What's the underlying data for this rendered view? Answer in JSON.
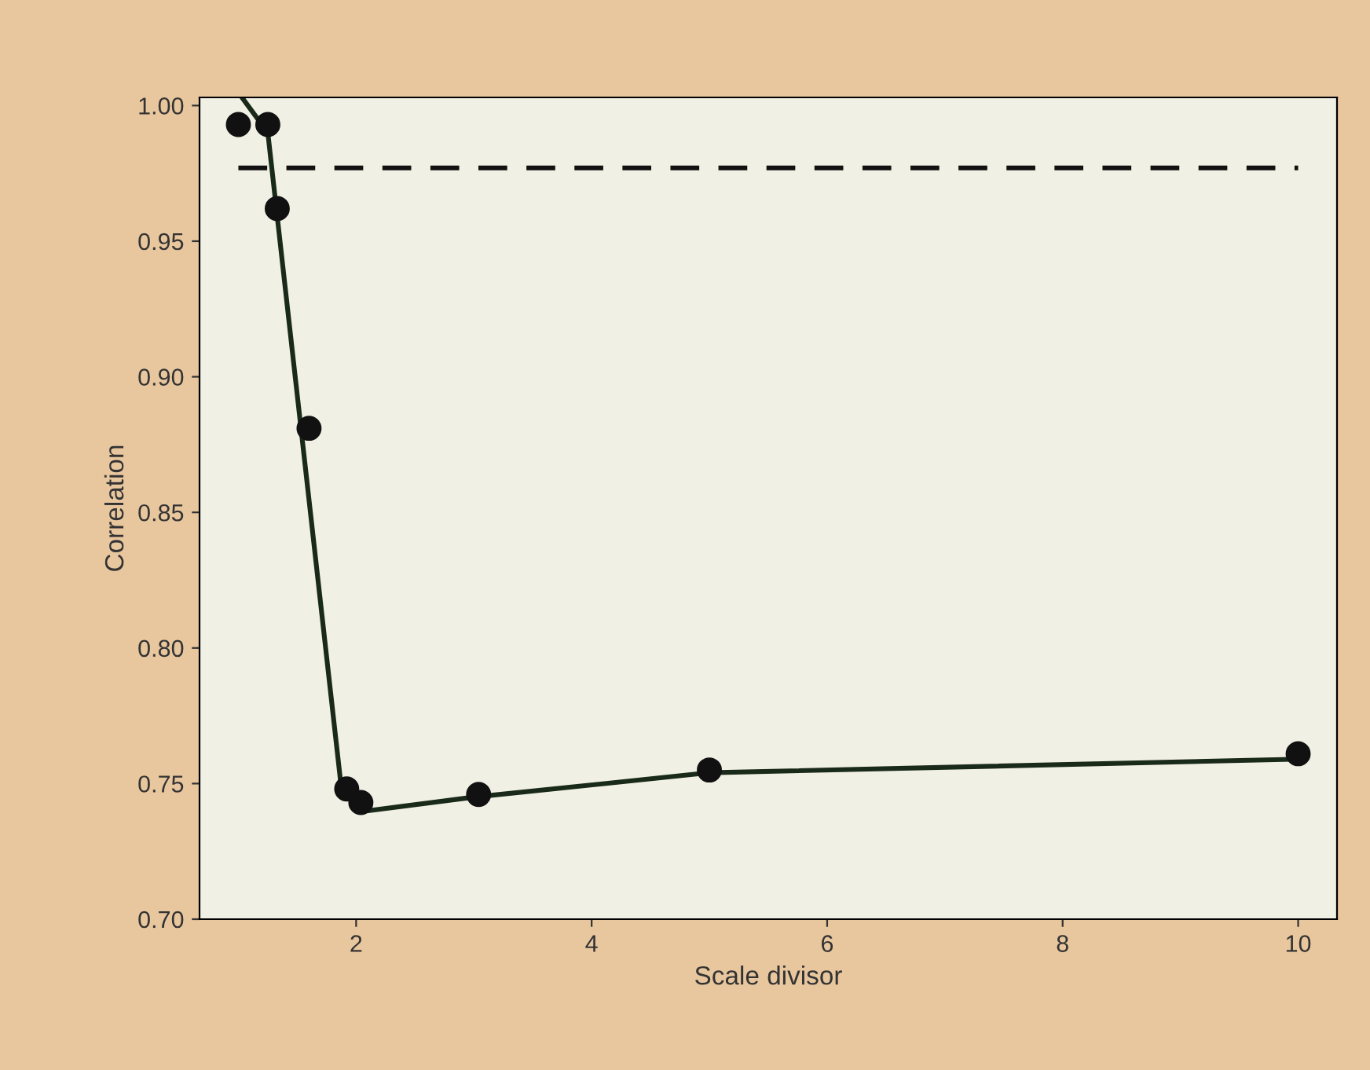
{
  "chart_data": {
    "type": "scatter",
    "xlabel": "Scale divisor",
    "ylabel": "Correlation",
    "xlim": [
      0.67,
      10.33
    ],
    "ylim": [
      0.7,
      1.003
    ],
    "xticks": [
      2,
      4,
      6,
      8,
      10
    ],
    "yticks": [
      {
        "value": 0.7,
        "label": "0.70"
      },
      {
        "value": 0.75,
        "label": "0.75"
      },
      {
        "value": 0.8,
        "label": "0.80"
      },
      {
        "value": 0.85,
        "label": "0.85"
      },
      {
        "value": 0.9,
        "label": "0.90"
      },
      {
        "value": 0.95,
        "label": "0.95"
      },
      {
        "value": 1.0,
        "label": "1.00"
      }
    ],
    "grid": false,
    "legend": false,
    "series": [
      {
        "type": "line",
        "color": "#111111",
        "line_style": "dashed",
        "marker": "none",
        "x": [
          1.0,
          10.0
        ],
        "values": [
          0.977,
          0.977
        ]
      },
      {
        "type": "line",
        "color": "#1a2a1a",
        "line_style": "solid",
        "marker": "none",
        "x": [
          1.03,
          1.25,
          1.87,
          2.1,
          3.0,
          5.0,
          10.0
        ],
        "values": [
          1.003,
          0.99,
          0.75,
          0.74,
          0.745,
          0.754,
          0.759
        ]
      },
      {
        "color": "#111111",
        "marker": "circle",
        "x": [
          1.0,
          1.25,
          1.33,
          1.6,
          1.92,
          2.04,
          3.04,
          5.0,
          10.0
        ],
        "values": [
          0.993,
          0.993,
          0.962,
          0.881,
          0.748,
          0.743,
          0.746,
          0.755,
          0.761
        ]
      }
    ]
  }
}
